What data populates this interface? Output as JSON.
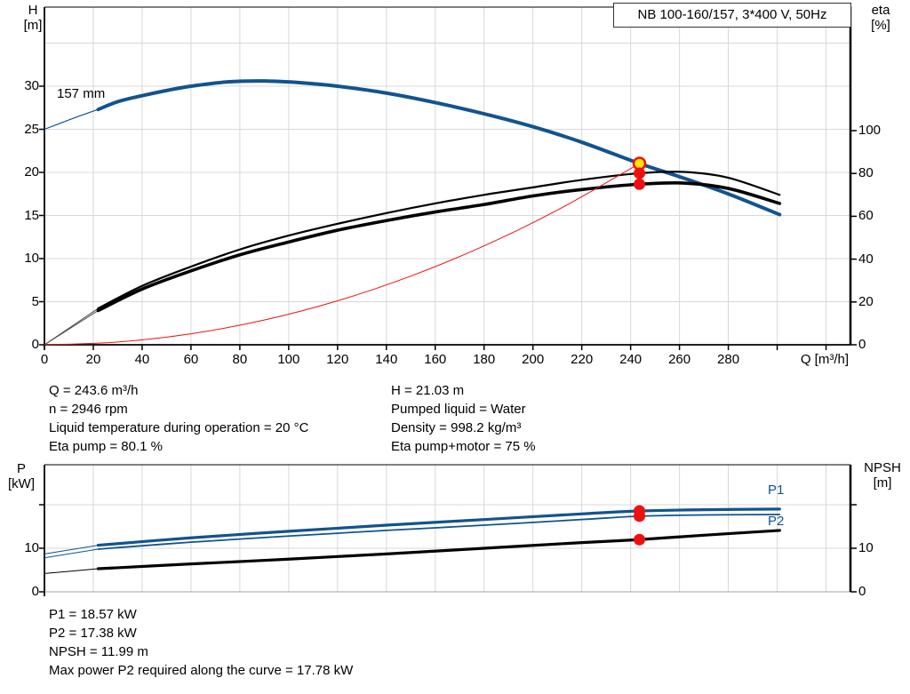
{
  "title_box": "NB 100-160/157, 3*400 V, 50Hz",
  "colors": {
    "blue": "#12538f",
    "red": "#ee1010",
    "yellow": "#ffe600",
    "black": "#000000",
    "gray_lead": "#4d4d4d",
    "grid": "#d8d8d8",
    "frame_gray": "#a0a0a0"
  },
  "axis_labels": {
    "h_name": "H",
    "h_unit": "[m]",
    "eta_name": "eta",
    "eta_unit": "[%]",
    "q": "Q [m³/h]",
    "p_name": "P",
    "p_unit": "[kW]",
    "npsh_name": "NPSH",
    "npsh_unit": "[m]"
  },
  "details_top": {
    "q": "Q = 243.6 m³/h",
    "n": "n = 2946 rpm",
    "temp": "Liquid temperature during operation = 20 °C",
    "eta_pump": "Eta pump = 80.1 %",
    "h": "H = 21.03 m",
    "liquid": "Pumped liquid = Water",
    "density": "Density = 998.2 kg/m³",
    "eta_pump_motor": "Eta pump+motor = 75 %"
  },
  "details_bottom": {
    "p1": "P1 = 18.57 kW",
    "p2": "P2 = 17.38 kW",
    "npsh": "NPSH = 11.99 m",
    "max_p2": "Max power P2 required along the curve = 17.78 kW"
  },
  "chart_data": [
    {
      "type": "line",
      "title": "NB 100-160/157, 3*400 V, 50Hz",
      "xlabel": "Q [m³/h]",
      "ylabel_left": "H [m]",
      "ylabel_right": "eta [%]",
      "xlim": [
        0,
        330
      ],
      "ylim_left": [
        0,
        39.2
      ],
      "ylim_right": [
        0,
        157.7
      ],
      "grid": true,
      "x_ticks": [
        0,
        20,
        40,
        60,
        80,
        100,
        120,
        140,
        160,
        180,
        200,
        220,
        240,
        260,
        280
      ],
      "x_ticks_unlabeled": [
        300,
        320
      ],
      "y_ticks_left": [
        0,
        5,
        10,
        15,
        20,
        25,
        30
      ],
      "y_ticks_right": [
        0,
        20,
        40,
        60,
        80,
        100
      ],
      "grid_x": [
        20,
        40,
        60,
        80,
        100,
        120,
        140,
        160,
        180,
        200,
        220,
        240,
        260,
        280,
        300,
        320
      ],
      "grid_y_left": [
        5,
        10,
        15,
        20,
        25,
        30,
        35
      ],
      "series": [
        {
          "name": "head-curve-157mm",
          "label": "157 mm",
          "axis": "left",
          "color_key": "blue",
          "width": 4,
          "lead_until": 22,
          "lead_width": 1.2,
          "x": [
            0,
            12,
            22,
            30,
            40,
            50,
            60,
            75,
            90,
            105,
            120,
            140,
            160,
            180,
            200,
            220,
            243.6,
            260,
            280,
            301
          ],
          "y": [
            25.0,
            26.3,
            27.3,
            28.2,
            28.9,
            29.5,
            30.0,
            30.5,
            30.6,
            30.4,
            30.0,
            29.2,
            28.1,
            26.8,
            25.3,
            23.5,
            21.03,
            19.5,
            17.5,
            15.1
          ]
        },
        {
          "name": "eta-pump-curve",
          "axis": "right",
          "color_key": "black",
          "width": 2.2,
          "lead_until": 22,
          "lead_width": 1,
          "lead_color_key": "gray_lead",
          "x": [
            0,
            22,
            40,
            60,
            80,
            100,
            120,
            140,
            160,
            180,
            200,
            220,
            243.6,
            262,
            280,
            301
          ],
          "y": [
            0,
            17,
            27.5,
            36.5,
            44.5,
            51,
            56.5,
            61.5,
            66,
            70,
            73.5,
            77,
            80.1,
            80.7,
            78,
            70
          ]
        },
        {
          "name": "eta-pump-motor-curve",
          "axis": "right",
          "color_key": "black",
          "width": 3.6,
          "lead_until": 22,
          "lead_width": 1,
          "lead_color_key": "gray_lead",
          "x": [
            0,
            22,
            40,
            60,
            80,
            100,
            120,
            140,
            160,
            180,
            200,
            220,
            243.6,
            262,
            280,
            301
          ],
          "y": [
            0,
            16,
            26,
            34.5,
            42,
            48,
            53.5,
            58,
            62,
            65.5,
            69.5,
            72.5,
            75,
            75.5,
            73,
            66
          ]
        },
        {
          "name": "system-curve",
          "axis": "left",
          "color_key": "red",
          "width": 1,
          "x": [
            0,
            30,
            60,
            90,
            120,
            150,
            180,
            210,
            243.6
          ],
          "y": [
            0,
            0.32,
            1.28,
            2.87,
            5.1,
            7.97,
            11.48,
            15.62,
            21.03
          ]
        }
      ],
      "markers": [
        {
          "name": "duty-point-head",
          "x": 243.6,
          "y": 21.03,
          "axis": "left",
          "fill_key": "yellow",
          "ring_key": "red"
        },
        {
          "name": "duty-point-eta-pump",
          "x": 243.6,
          "y": 80.1,
          "axis": "right",
          "fill_key": "red"
        },
        {
          "name": "duty-point-eta-pump-motor",
          "x": 243.6,
          "y": 75,
          "axis": "right",
          "fill_key": "red"
        }
      ]
    },
    {
      "type": "line",
      "xlabel": "Q [m³/h]",
      "ylabel_left": "P [kW]",
      "ylabel_right": "NPSH [m]",
      "xlim": [
        0,
        330
      ],
      "ylim_left": [
        0,
        29.2
      ],
      "ylim_right": [
        0,
        29.2
      ],
      "grid": true,
      "x_ticks": [],
      "x_ticks_unlabeled": [],
      "y_ticks_left": [
        0,
        10
      ],
      "y_ticks_left_unlabeled": [
        20
      ],
      "y_ticks_right": [
        0,
        10
      ],
      "y_ticks_right_unlabeled": [
        20
      ],
      "grid_x": [
        20,
        40,
        60,
        80,
        100,
        120,
        140,
        160,
        180,
        200,
        220,
        240,
        260,
        280,
        300,
        320
      ],
      "grid_y_left": [
        10,
        20
      ],
      "series": [
        {
          "name": "p1-curve",
          "label": "P1",
          "axis": "left",
          "color_key": "blue",
          "width": 3.2,
          "lead_until": 22,
          "lead_width": 1,
          "x": [
            0,
            22,
            60,
            100,
            140,
            180,
            220,
            243.6,
            270,
            301
          ],
          "y": [
            8.7,
            10.7,
            12.4,
            13.9,
            15.3,
            16.6,
            17.9,
            18.57,
            18.85,
            19.0
          ]
        },
        {
          "name": "p2-curve",
          "label": "P2",
          "axis": "left",
          "color_key": "blue",
          "width": 1.8,
          "lead_until": 22,
          "lead_width": 1,
          "x": [
            0,
            22,
            60,
            100,
            140,
            180,
            220,
            243.6,
            270,
            301
          ],
          "y": [
            7.8,
            9.8,
            11.4,
            12.8,
            14.1,
            15.3,
            16.6,
            17.38,
            17.65,
            17.75
          ]
        },
        {
          "name": "npsh-curve",
          "axis": "right",
          "color_key": "black",
          "width": 3.2,
          "lead_until": 22,
          "lead_width": 1,
          "x": [
            0,
            22,
            60,
            100,
            140,
            180,
            220,
            243.6,
            270,
            301
          ],
          "y": [
            4.2,
            5.3,
            6.4,
            7.5,
            8.7,
            10.0,
            11.3,
            11.99,
            13.0,
            14.1
          ]
        }
      ],
      "markers": [
        {
          "name": "duty-point-p1",
          "x": 243.6,
          "y": 18.57,
          "axis": "left",
          "fill_key": "red"
        },
        {
          "name": "duty-point-p2",
          "x": 243.6,
          "y": 17.38,
          "axis": "left",
          "fill_key": "red"
        },
        {
          "name": "duty-point-npsh",
          "x": 243.6,
          "y": 11.99,
          "axis": "right",
          "fill_key": "red"
        }
      ]
    }
  ]
}
